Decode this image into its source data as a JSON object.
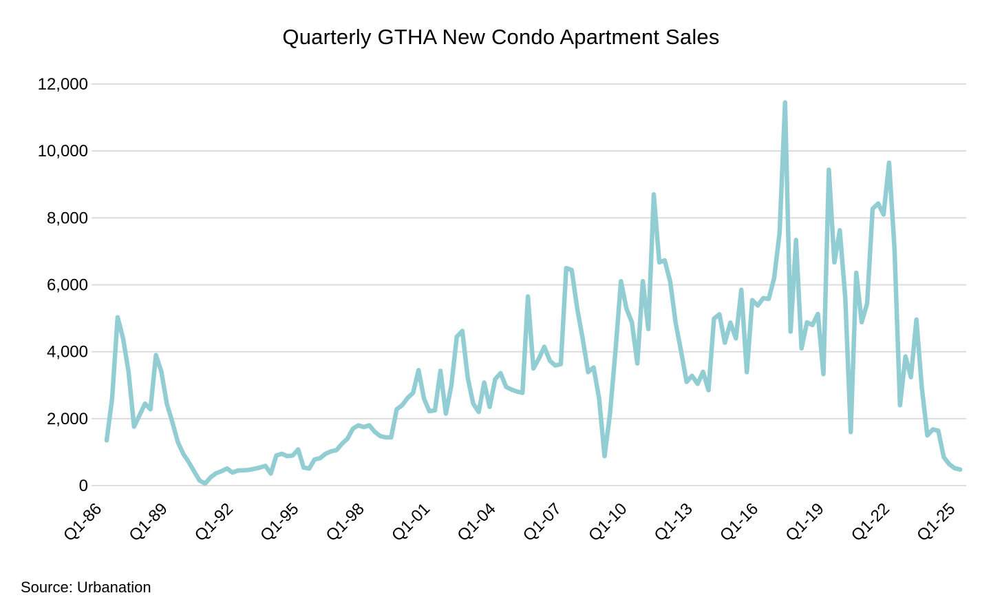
{
  "title": "Quarterly GTHA New Condo Apartment Sales",
  "source": "Source: Urbanation",
  "colors": {
    "line": "#92CDD3",
    "gridline": "#D9D9D9",
    "text": "#000000",
    "background": "#FFFFFF"
  },
  "axes": {
    "y_ticks": [
      {
        "value": 0,
        "label": "0"
      },
      {
        "value": 2000,
        "label": "2,000"
      },
      {
        "value": 4000,
        "label": "4,000"
      },
      {
        "value": 6000,
        "label": "6,000"
      },
      {
        "value": 8000,
        "label": "8,000"
      },
      {
        "value": 10000,
        "label": "10,000"
      },
      {
        "value": 12000,
        "label": "12,000"
      }
    ],
    "x_tick_labels": [
      "Q1-86",
      "Q1-89",
      "Q1-92",
      "Q1-95",
      "Q1-98",
      "Q1-01",
      "Q1-04",
      "Q1-07",
      "Q1-10",
      "Q1-13",
      "Q1-16",
      "Q1-19",
      "Q1-22",
      "Q1-25"
    ],
    "x_tick_every_n_quarters": 12
  },
  "chart_data": {
    "type": "line",
    "title": "Quarterly GTHA New Condo Apartment Sales",
    "xlabel": "",
    "ylabel": "",
    "ylim": [
      0,
      12000
    ],
    "grid": "horizontal",
    "legend_position": "none",
    "frequency": "quarterly",
    "x_start": "Q1-1986",
    "x_end": "Q1-2025",
    "categories": [
      "Q1-86",
      "Q2-86",
      "Q3-86",
      "Q4-86",
      "Q1-87",
      "Q2-87",
      "Q3-87",
      "Q4-87",
      "Q1-88",
      "Q2-88",
      "Q3-88",
      "Q4-88",
      "Q1-89",
      "Q2-89",
      "Q3-89",
      "Q4-89",
      "Q1-90",
      "Q2-90",
      "Q3-90",
      "Q4-90",
      "Q1-91",
      "Q2-91",
      "Q3-91",
      "Q4-91",
      "Q1-92",
      "Q2-92",
      "Q3-92",
      "Q4-92",
      "Q1-93",
      "Q2-93",
      "Q3-93",
      "Q4-93",
      "Q1-94",
      "Q2-94",
      "Q3-94",
      "Q4-94",
      "Q1-95",
      "Q2-95",
      "Q3-95",
      "Q4-95",
      "Q1-96",
      "Q2-96",
      "Q3-96",
      "Q4-96",
      "Q1-97",
      "Q2-97",
      "Q3-97",
      "Q4-97",
      "Q1-98",
      "Q2-98",
      "Q3-98",
      "Q4-98",
      "Q1-99",
      "Q2-99",
      "Q3-99",
      "Q4-99",
      "Q1-00",
      "Q2-00",
      "Q3-00",
      "Q4-00",
      "Q1-01",
      "Q2-01",
      "Q3-01",
      "Q4-01",
      "Q1-02",
      "Q2-02",
      "Q3-02",
      "Q4-02",
      "Q1-03",
      "Q2-03",
      "Q3-03",
      "Q4-03",
      "Q1-04",
      "Q2-04",
      "Q3-04",
      "Q4-04",
      "Q1-05",
      "Q2-05",
      "Q3-05",
      "Q4-05",
      "Q1-06",
      "Q2-06",
      "Q3-06",
      "Q4-06",
      "Q1-07",
      "Q2-07",
      "Q3-07",
      "Q4-07",
      "Q1-08",
      "Q2-08",
      "Q3-08",
      "Q4-08",
      "Q1-09",
      "Q2-09",
      "Q3-09",
      "Q4-09",
      "Q1-10",
      "Q2-10",
      "Q3-10",
      "Q4-10",
      "Q1-11",
      "Q2-11",
      "Q3-11",
      "Q4-11",
      "Q1-12",
      "Q2-12",
      "Q3-12",
      "Q4-12",
      "Q1-13",
      "Q2-13",
      "Q3-13",
      "Q4-13",
      "Q1-14",
      "Q2-14",
      "Q3-14",
      "Q4-14",
      "Q1-15",
      "Q2-15",
      "Q3-15",
      "Q4-15",
      "Q1-16",
      "Q2-16",
      "Q3-16",
      "Q4-16",
      "Q1-17",
      "Q2-17",
      "Q3-17",
      "Q4-17",
      "Q1-18",
      "Q2-18",
      "Q3-18",
      "Q4-18",
      "Q1-19",
      "Q2-19",
      "Q3-19",
      "Q4-19",
      "Q1-20",
      "Q2-20",
      "Q3-20",
      "Q4-20",
      "Q1-21",
      "Q2-21",
      "Q3-21",
      "Q4-21",
      "Q1-22",
      "Q2-22",
      "Q3-22",
      "Q4-22",
      "Q1-23",
      "Q2-23",
      "Q3-23",
      "Q4-23",
      "Q1-24",
      "Q2-24",
      "Q3-24",
      "Q4-24",
      "Q1-25"
    ],
    "values": [
      1350,
      2600,
      5030,
      4400,
      3400,
      1760,
      2100,
      2450,
      2280,
      3900,
      3400,
      2450,
      1900,
      1300,
      950,
      700,
      420,
      150,
      60,
      250,
      370,
      430,
      510,
      390,
      450,
      460,
      470,
      500,
      540,
      590,
      360,
      900,
      950,
      880,
      900,
      1080,
      540,
      510,
      780,
      820,
      950,
      1020,
      1060,
      1250,
      1400,
      1700,
      1800,
      1750,
      1800,
      1610,
      1480,
      1440,
      1440,
      2280,
      2400,
      2620,
      2770,
      3450,
      2600,
      2220,
      2250,
      3430,
      2150,
      3000,
      4450,
      4620,
      3220,
      2450,
      2200,
      3080,
      2350,
      3180,
      3360,
      2950,
      2870,
      2810,
      2770,
      5650,
      3500,
      3800,
      4150,
      3730,
      3590,
      3630,
      6500,
      6440,
      5300,
      4400,
      3390,
      3530,
      2610,
      880,
      2150,
      4040,
      6110,
      5290,
      4880,
      3650,
      6110,
      4680,
      8700,
      6670,
      6730,
      6090,
      4860,
      4000,
      3100,
      3280,
      3040,
      3400,
      2850,
      4990,
      5120,
      4270,
      4870,
      4400,
      5850,
      3390,
      5540,
      5380,
      5600,
      5580,
      6200,
      7550,
      11450,
      4600,
      7340,
      4100,
      4880,
      4800,
      5130,
      3330,
      9440,
      6670,
      7630,
      5600,
      1600,
      6360,
      4880,
      5440,
      8270,
      8430,
      8100,
      9650,
      7080,
      2400,
      3860,
      3240,
      4960,
      2930,
      1500,
      1680,
      1640,
      850,
      640,
      520,
      480
    ]
  }
}
